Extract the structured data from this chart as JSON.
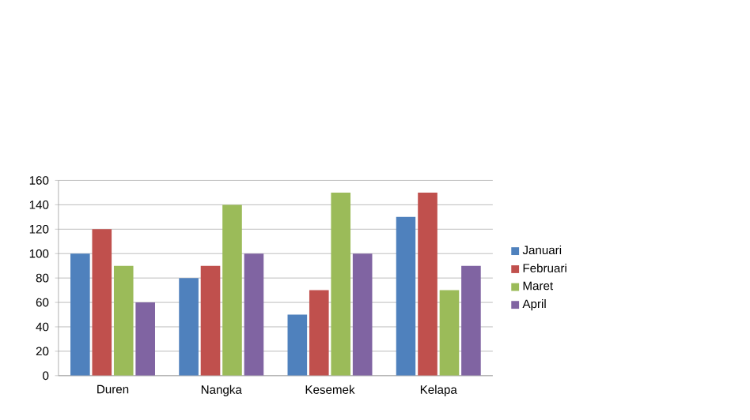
{
  "chart_data": {
    "type": "bar",
    "categories": [
      "Duren",
      "Nangka",
      "Kesemek",
      "Kelapa"
    ],
    "series": [
      {
        "name": "Januari",
        "color": "#4f81bd",
        "values": [
          100,
          80,
          50,
          130
        ]
      },
      {
        "name": "Februari",
        "color": "#c0504d",
        "values": [
          120,
          90,
          70,
          150
        ]
      },
      {
        "name": "Maret",
        "color": "#9bbb59",
        "values": [
          90,
          140,
          150,
          70
        ]
      },
      {
        "name": "April",
        "color": "#8064a2",
        "values": [
          60,
          100,
          100,
          90
        ]
      }
    ],
    "ylim": [
      0,
      160
    ],
    "yticks": [
      0,
      20,
      40,
      60,
      80,
      100,
      120,
      140,
      160
    ],
    "grid": "y",
    "legend": "right"
  }
}
